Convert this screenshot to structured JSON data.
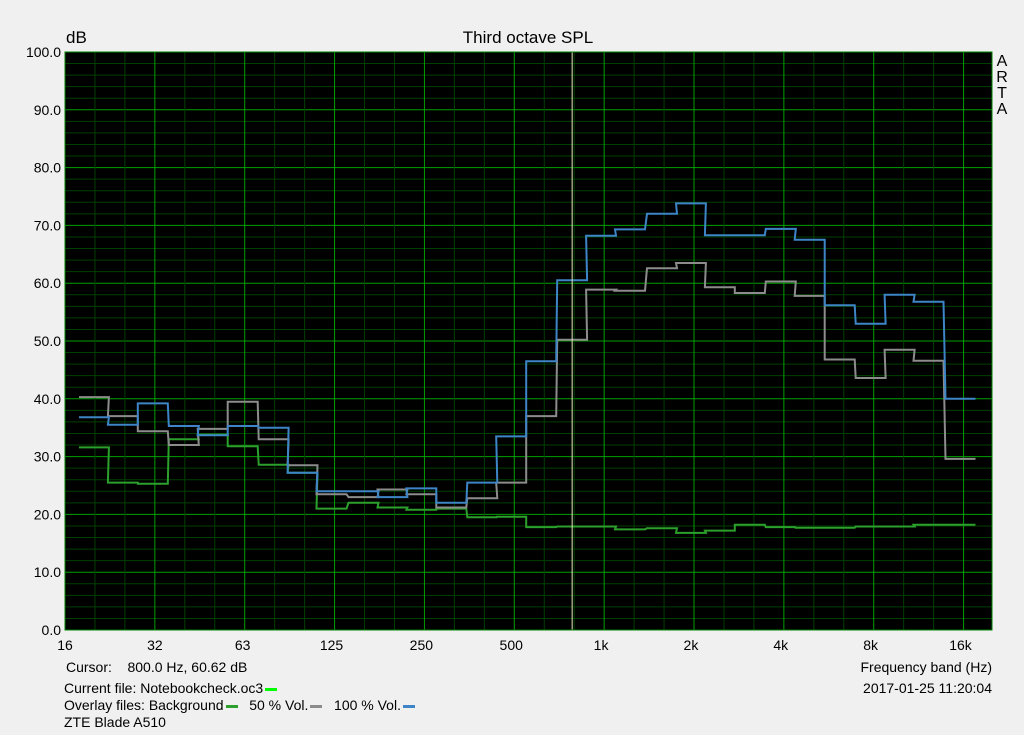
{
  "chart_data": {
    "type": "line",
    "step": true,
    "title": "Third octave SPL",
    "ylabel": "dB",
    "xlabel": "Frequency band (Hz)",
    "xscale": "log",
    "xlim": [
      16,
      20400
    ],
    "ylim": [
      0,
      100
    ],
    "grid": true,
    "y_ticks": [
      "0.0",
      "10.0",
      "20.0",
      "30.0",
      "40.0",
      "50.0",
      "60.0",
      "70.0",
      "80.0",
      "90.0",
      "100.0"
    ],
    "x_ticks": [
      {
        "label": "16",
        "value": 16
      },
      {
        "label": "32",
        "value": 32
      },
      {
        "label": "63",
        "value": 63
      },
      {
        "label": "125",
        "value": 125
      },
      {
        "label": "250",
        "value": 250
      },
      {
        "label": "500",
        "value": 500
      },
      {
        "label": "1k",
        "value": 1000
      },
      {
        "label": "2k",
        "value": 2000
      },
      {
        "label": "4k",
        "value": 4000
      },
      {
        "label": "8k",
        "value": 8000
      },
      {
        "label": "16k",
        "value": 16000
      }
    ],
    "x": [
      20,
      25,
      31.5,
      40,
      50,
      63,
      80,
      100,
      125,
      160,
      200,
      250,
      315,
      400,
      500,
      630,
      800,
      1000,
      1250,
      1600,
      2000,
      2500,
      3150,
      4000,
      5000,
      6300,
      8000,
      10000,
      12500,
      16000
    ],
    "series": [
      {
        "name": "Background",
        "color": "#2ca02c",
        "values": [
          31.6,
          25.5,
          25.3,
          33.0,
          33.8,
          31.8,
          28.6,
          27.2,
          21.0,
          22.0,
          21.2,
          20.8,
          21.0,
          19.5,
          19.6,
          17.8,
          17.9,
          17.9,
          17.4,
          17.6,
          16.8,
          17.2,
          18.2,
          17.8,
          17.7,
          17.7,
          17.9,
          17.9,
          18.2,
          18.2
        ]
      },
      {
        "name": "50 % Vol.",
        "color": "#8c8c8c",
        "values": [
          40.3,
          37.0,
          34.4,
          32.0,
          34.8,
          39.5,
          33.0,
          28.5,
          23.5,
          23.0,
          24.3,
          23.5,
          21.2,
          22.8,
          25.5,
          37.0,
          50.2,
          58.9,
          58.7,
          62.6,
          63.5,
          59.3,
          58.3,
          60.3,
          57.8,
          46.8,
          43.6,
          48.5,
          46.6,
          29.6
        ]
      },
      {
        "name": "100 % Vol.",
        "color": "#3d85c6",
        "values": [
          36.8,
          35.5,
          39.2,
          35.3,
          33.7,
          35.3,
          35.0,
          27.2,
          24.0,
          24.0,
          23.0,
          24.5,
          22.0,
          25.5,
          33.5,
          46.5,
          60.5,
          68.2,
          69.3,
          72.0,
          73.8,
          68.3,
          68.3,
          69.4,
          67.5,
          56.2,
          53.0,
          58.0,
          56.8,
          40.0
        ]
      }
    ],
    "cursor": {
      "freq": 800.0,
      "db": 60.62
    }
  },
  "watermark": "ARTA",
  "footer": {
    "cursor_label": "Cursor:",
    "cursor_value": "800.0 Hz, 60.62 dB",
    "current_file_label": "Current file: Notebookcheck.oc3",
    "current_file_color": "#00ff00",
    "overlay_label": "Overlay files:",
    "overlays": [
      "Background",
      "50 % Vol.",
      "100 % Vol."
    ],
    "device": "ZTE Blade A510",
    "timestamp": "2017-01-25  11:20:04"
  }
}
